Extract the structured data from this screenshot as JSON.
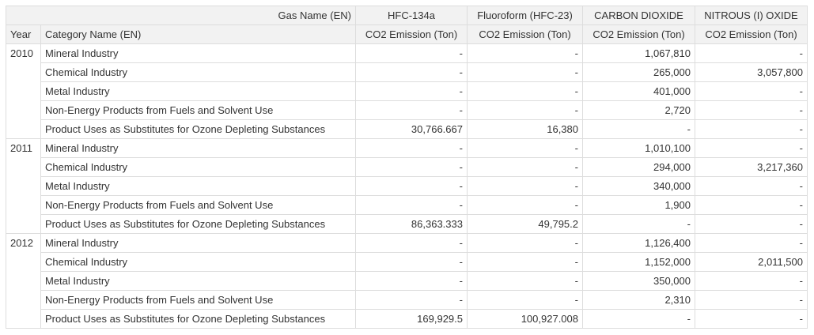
{
  "header": {
    "gas_name_label": "Gas Name (EN)",
    "year_label": "Year",
    "category_label": "Category Name (EN)",
    "gases": [
      {
        "name": "HFC-134a",
        "unit": "CO2 Emission (Ton)"
      },
      {
        "name": "Fluoroform (HFC-23)",
        "unit": "CO2 Emission (Ton)"
      },
      {
        "name": "CARBON DIOXIDE",
        "unit": "CO2 Emission (Ton)"
      },
      {
        "name": "NITROUS (I) OXIDE",
        "unit": "CO2 Emission (Ton)"
      }
    ]
  },
  "groups": [
    {
      "year": "2010",
      "rows": [
        {
          "category": "Mineral Industry",
          "values": [
            "-",
            "-",
            "1,067,810",
            "-"
          ]
        },
        {
          "category": "Chemical Industry",
          "values": [
            "-",
            "-",
            "265,000",
            "3,057,800"
          ]
        },
        {
          "category": "Metal Industry",
          "values": [
            "-",
            "-",
            "401,000",
            "-"
          ]
        },
        {
          "category": "Non-Energy Products from Fuels and Solvent Use",
          "values": [
            "-",
            "-",
            "2,720",
            "-"
          ]
        },
        {
          "category": "Product Uses as Substitutes for Ozone Depleting Substances",
          "values": [
            "30,766.667",
            "16,380",
            "-",
            "-"
          ]
        }
      ]
    },
    {
      "year": "2011",
      "rows": [
        {
          "category": "Mineral Industry",
          "values": [
            "-",
            "-",
            "1,010,100",
            "-"
          ]
        },
        {
          "category": "Chemical Industry",
          "values": [
            "-",
            "-",
            "294,000",
            "3,217,360"
          ]
        },
        {
          "category": "Metal Industry",
          "values": [
            "-",
            "-",
            "340,000",
            "-"
          ]
        },
        {
          "category": "Non-Energy Products from Fuels and Solvent Use",
          "values": [
            "-",
            "-",
            "1,900",
            "-"
          ]
        },
        {
          "category": "Product Uses as Substitutes for Ozone Depleting Substances",
          "values": [
            "86,363.333",
            "49,795.2",
            "-",
            "-"
          ]
        }
      ]
    },
    {
      "year": "2012",
      "rows": [
        {
          "category": "Mineral Industry",
          "values": [
            "-",
            "-",
            "1,126,400",
            "-"
          ]
        },
        {
          "category": "Chemical Industry",
          "values": [
            "-",
            "-",
            "1,152,000",
            "2,011,500"
          ]
        },
        {
          "category": "Metal Industry",
          "values": [
            "-",
            "-",
            "350,000",
            "-"
          ]
        },
        {
          "category": "Non-Energy Products from Fuels and Solvent Use",
          "values": [
            "-",
            "-",
            "2,310",
            "-"
          ]
        },
        {
          "category": "Product Uses as Substitutes for Ozone Depleting Substances",
          "values": [
            "169,929.5",
            "100,927.008",
            "-",
            "-"
          ]
        }
      ]
    }
  ]
}
